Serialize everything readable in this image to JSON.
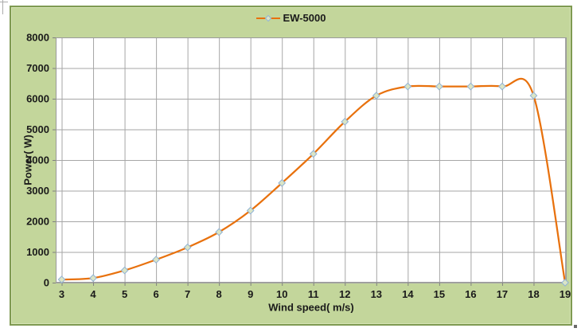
{
  "colors": {
    "chart_background": "#c3d69b",
    "chart_border": "#7f9a52",
    "plot_background": "#ffffff",
    "gridline": "#a6a6a6",
    "plot_border": "#9a9a9a",
    "tick_mark": "#808080",
    "series_line": "#e8710d",
    "marker_fill": "#dbe5c5",
    "marker_stroke": "#8fb2d6",
    "text": "#1a1a1a"
  },
  "chart_data": {
    "type": "line",
    "title": "",
    "legend_position": "top-center",
    "grid": true,
    "xlabel": "Wind speed( m/s)",
    "ylabel": "Power( W)",
    "xlim": [
      3,
      19
    ],
    "ylim": [
      0,
      8000
    ],
    "x": [
      3,
      4,
      5,
      6,
      7,
      8,
      9,
      10,
      11,
      12,
      13,
      14,
      15,
      16,
      17,
      18,
      19
    ],
    "x_ticks": [
      "3",
      "4",
      "5",
      "6",
      "7",
      "8",
      "9",
      "10",
      "11",
      "12",
      "13",
      "14",
      "15",
      "16",
      "17",
      "18",
      "19"
    ],
    "y_ticks": [
      "0",
      "1000",
      "2000",
      "3000",
      "4000",
      "5000",
      "6000",
      "7000",
      "8000"
    ],
    "y_tick_values": [
      0,
      1000,
      2000,
      3000,
      4000,
      5000,
      6000,
      7000,
      8000
    ],
    "series": [
      {
        "name": "EW-5000",
        "values": [
          100,
          150,
          400,
          750,
          1150,
          1650,
          2350,
          3250,
          4200,
          5250,
          6100,
          6400,
          6400,
          6400,
          6400,
          6100,
          0
        ]
      }
    ]
  }
}
